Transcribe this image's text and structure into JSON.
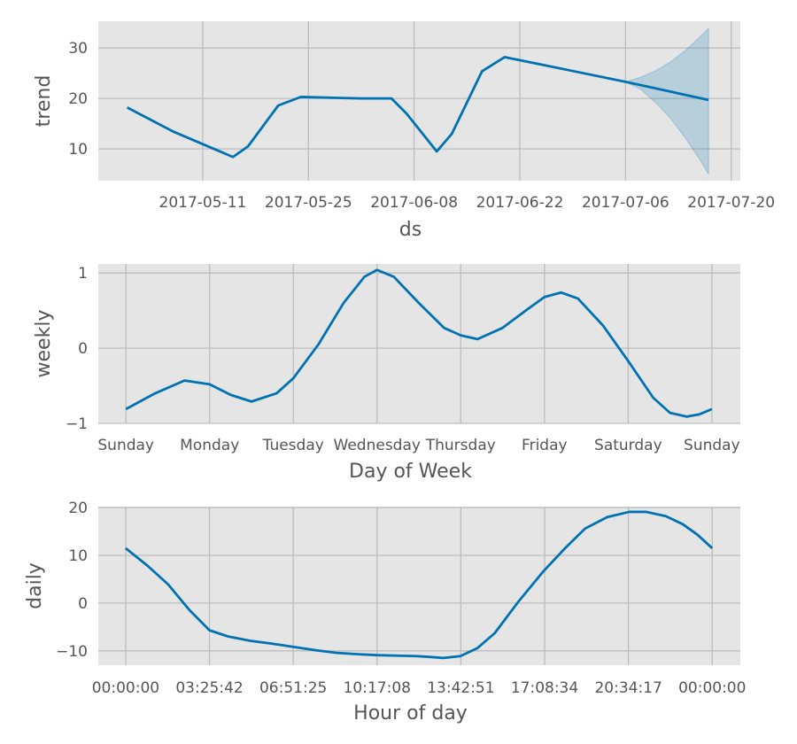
{
  "chart_data": [
    {
      "type": "line",
      "ylabel": "trend",
      "xlabel": "ds",
      "x_type": "date",
      "xlim": [
        "2017-04-27T04:00",
        "2017-07-21T05:00"
      ],
      "ylim": [
        3.7,
        35.3
      ],
      "grid": true,
      "xticks": [
        "2017-05-11",
        "2017-05-25",
        "2017-06-08",
        "2017-06-22",
        "2017-07-06",
        "2017-07-20"
      ],
      "yticks": [
        10,
        20,
        30
      ],
      "series": [
        {
          "name": "trend",
          "color": "#0072B2",
          "x": [
            "2017-05-01",
            "2017-05-07",
            "2017-05-15",
            "2017-05-17",
            "2017-05-21",
            "2017-05-24",
            "2017-06-01",
            "2017-06-05",
            "2017-06-07",
            "2017-06-11",
            "2017-06-13",
            "2017-06-17",
            "2017-06-20",
            "2017-07-06",
            "2017-07-17"
          ],
          "y": [
            18.2,
            13.5,
            8.4,
            10.5,
            18.6,
            20.3,
            20.0,
            20.0,
            17.0,
            9.5,
            13.0,
            25.4,
            28.2,
            23.3,
            19.7
          ]
        }
      ],
      "band": {
        "name": "trend uncertainty",
        "color": "#0072B2",
        "x": [
          "2017-07-06",
          "2017-07-08",
          "2017-07-10",
          "2017-07-12",
          "2017-07-14",
          "2017-07-16",
          "2017-07-17"
        ],
        "lower": [
          23.3,
          21.8,
          19.2,
          16.0,
          12.0,
          7.5,
          5.0
        ],
        "upper": [
          23.3,
          24.2,
          25.5,
          27.3,
          29.6,
          32.4,
          33.9
        ]
      }
    },
    {
      "type": "line",
      "ylabel": "weekly",
      "xlabel": "Day of Week",
      "xlim": [
        -0.33,
        7.34
      ],
      "ylim": [
        -1.0,
        1.12
      ],
      "grid": true,
      "xticks": [
        0,
        1,
        2,
        3,
        4,
        5,
        6,
        7
      ],
      "xticklabels": [
        "Sunday",
        "Monday",
        "Tuesday",
        "Wednesday",
        "Thursday",
        "Friday",
        "Saturday",
        "Sunday"
      ],
      "yticks": [
        -1,
        0,
        1
      ],
      "yticklabels": [
        "−1",
        "0",
        "1"
      ],
      "series": [
        {
          "name": "weekly",
          "color": "#0072B2",
          "x": [
            0,
            0.35,
            0.7,
            1.0,
            1.25,
            1.5,
            1.8,
            2.0,
            2.3,
            2.6,
            2.85,
            3.0,
            3.2,
            3.5,
            3.8,
            4.0,
            4.2,
            4.5,
            4.8,
            5.0,
            5.2,
            5.4,
            5.7,
            6.0,
            6.3,
            6.5,
            6.7,
            6.85,
            7.0
          ],
          "y": [
            -0.81,
            -0.6,
            -0.43,
            -0.48,
            -0.62,
            -0.71,
            -0.6,
            -0.4,
            0.05,
            0.6,
            0.95,
            1.04,
            0.95,
            0.6,
            0.27,
            0.17,
            0.12,
            0.27,
            0.52,
            0.68,
            0.74,
            0.66,
            0.3,
            -0.17,
            -0.66,
            -0.86,
            -0.91,
            -0.88,
            -0.81
          ]
        }
      ]
    },
    {
      "type": "line",
      "ylabel": "daily",
      "xlabel": "Hour of day",
      "xlim": [
        -1.12,
        25.15
      ],
      "ylim": [
        -13.0,
        20.2
      ],
      "grid": true,
      "xticks": [
        0,
        3.4286,
        6.8571,
        10.2857,
        13.7143,
        17.1429,
        20.5714,
        24
      ],
      "xticklabels": [
        "00:00:00",
        "03:25:42",
        "06:51:25",
        "10:17:08",
        "13:42:51",
        "17:08:34",
        "20:34:17",
        "00:00:00"
      ],
      "yticks": [
        -10,
        0,
        10,
        20
      ],
      "yticklabels": [
        "−10",
        "0",
        "10",
        "20"
      ],
      "series": [
        {
          "name": "daily",
          "color": "#0072B2",
          "x": [
            0,
            0.9,
            1.74,
            2.6,
            3.43,
            4.2,
            5.1,
            6.0,
            6.9,
            7.8,
            8.6,
            9.5,
            10.3,
            11.1,
            11.9,
            12.5,
            13.0,
            13.7,
            14.4,
            15.1,
            16.1,
            17.1,
            18.0,
            18.8,
            19.7,
            20.6,
            21.3,
            22.1,
            22.8,
            23.4,
            24
          ],
          "y": [
            11.5,
            7.8,
            3.9,
            -1.4,
            -5.7,
            -7.0,
            -7.9,
            -8.5,
            -9.2,
            -9.9,
            -10.4,
            -10.7,
            -10.9,
            -11.0,
            -11.1,
            -11.3,
            -11.5,
            -11.1,
            -9.4,
            -6.3,
            0.5,
            6.7,
            11.6,
            15.6,
            18.0,
            19.1,
            19.1,
            18.2,
            16.5,
            14.3,
            11.5
          ]
        }
      ]
    }
  ],
  "colors": {
    "panel_bg": "#E5E5E5",
    "grid": "#BDBDBD",
    "line": "#0072B2"
  }
}
